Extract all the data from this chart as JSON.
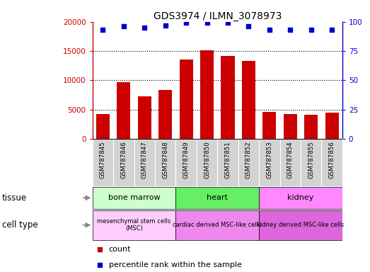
{
  "title": "GDS3974 / ILMN_3078973",
  "samples": [
    "GSM787845",
    "GSM787846",
    "GSM787847",
    "GSM787848",
    "GSM787849",
    "GSM787850",
    "GSM787851",
    "GSM787852",
    "GSM787853",
    "GSM787854",
    "GSM787855",
    "GSM787856"
  ],
  "counts": [
    4200,
    9700,
    7300,
    8300,
    13500,
    15100,
    14200,
    13300,
    4600,
    4200,
    4100,
    4500
  ],
  "percentile_ranks": [
    93,
    96,
    95,
    97,
    99,
    99,
    99,
    96,
    93,
    93,
    93,
    93
  ],
  "ylim_left": [
    0,
    20000
  ],
  "ylim_right": [
    0,
    100
  ],
  "yticks_left": [
    0,
    5000,
    10000,
    15000,
    20000
  ],
  "yticks_right": [
    0,
    25,
    50,
    75,
    100
  ],
  "bar_color": "#cc0000",
  "dot_color": "#0000cc",
  "tissue_groups": [
    {
      "label": "bone marrow",
      "start": 0,
      "end": 4,
      "color": "#ccffcc"
    },
    {
      "label": "heart",
      "start": 4,
      "end": 8,
      "color": "#66ee66"
    },
    {
      "label": "kidney",
      "start": 8,
      "end": 12,
      "color": "#ff88ff"
    }
  ],
  "cell_type_groups": [
    {
      "label": "mesenchymal stem cells\n(MSC)",
      "start": 0,
      "end": 4,
      "color": "#ffccff"
    },
    {
      "label": "cardiac derived MSC-like cells",
      "start": 4,
      "end": 8,
      "color": "#ee88ee"
    },
    {
      "label": "kidney derived MSC-like cells",
      "start": 8,
      "end": 12,
      "color": "#dd66dd"
    }
  ],
  "tissue_label": "tissue",
  "cell_type_label": "cell type",
  "legend_count_label": "count",
  "legend_percentile_label": "percentile rank within the sample",
  "tick_bg_color": "#d3d3d3",
  "arrow_color": "#888888"
}
